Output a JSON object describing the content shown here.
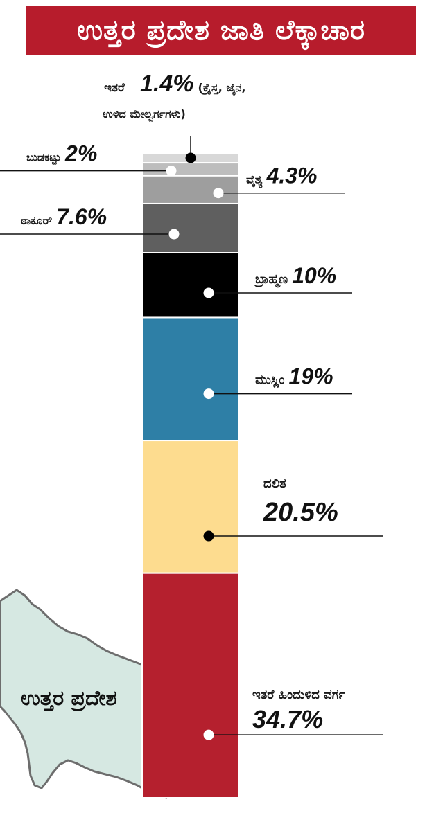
{
  "title": "ಉತ್ತರ ಪ್ರದೇಶ ಜಾತಿ ಲೆಕ್ಕಾಚಾರ",
  "map_label": "ಉತ್ತರ ಪ್ರದೇಶ",
  "chart_data": {
    "type": "bar",
    "orientation": "stacked-vertical",
    "unit": "%",
    "segments": [
      {
        "name": "ಇತರೆ",
        "value": 1.4,
        "value_label": "1.4%",
        "note": "(ಕ್ರೈಸ್ತ, ಜೈನ,",
        "note2": "ಉಳಿದ ಮೇಲ್ವರ್ಗಗಳು)",
        "color": "#d8d8d8"
      },
      {
        "name": "ಬುಡಕಟ್ಟು",
        "value": 2,
        "value_label": "2%",
        "color": "#bdbdbd"
      },
      {
        "name": "ವೈಶ್ಯ",
        "value": 4.3,
        "value_label": "4.3%",
        "color": "#9e9e9e"
      },
      {
        "name": "ಠಾಕೂರ್",
        "value": 7.6,
        "value_label": "7.6%",
        "color": "#5f5f5f"
      },
      {
        "name": "ಬ್ರಾಹ್ಮಣ",
        "value": 10,
        "value_label": "10%",
        "color": "#000000"
      },
      {
        "name": "ಮುಸ್ಲಿಂ",
        "value": 19,
        "value_label": "19%",
        "color": "#2e7fa6"
      },
      {
        "name": "ದಲಿತ",
        "value": 20.5,
        "value_label": "20.5%",
        "color": "#fddc8f"
      },
      {
        "name": "ಇತರೆ ಹಿಂದುಳಿದ ವರ್ಗ",
        "value": 34.7,
        "value_label": "34.7%",
        "color": "#b5202e"
      }
    ]
  },
  "colors": {
    "title_bg": "#b71c2c",
    "map_fill": "#d6e8e2",
    "map_stroke": "#6d6d6d"
  }
}
